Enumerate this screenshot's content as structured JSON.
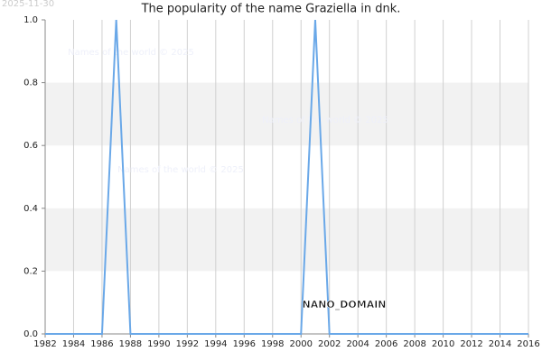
{
  "chart_data": {
    "type": "line",
    "title": "The popularity of the name Graziella in dnk.",
    "date_stamp": "2025-11-30",
    "watermarks": [
      "Names of the world © 2025",
      "Names of the world © 2025",
      "Names of the world © 2025"
    ],
    "domain_label": "NANO_DOMAIN",
    "x": [
      1982,
      1983,
      1984,
      1985,
      1986,
      1987,
      1988,
      1989,
      1990,
      1991,
      1992,
      1993,
      1994,
      1995,
      1996,
      1997,
      1998,
      1999,
      2000,
      2001,
      2002,
      2003,
      2004,
      2005,
      2006,
      2007,
      2008,
      2009,
      2010,
      2011,
      2012,
      2013,
      2014,
      2015,
      2016
    ],
    "series": [
      {
        "name": "Graziella",
        "color": "#6aa8e8",
        "values": [
          0,
          0,
          0,
          0,
          0,
          1,
          0,
          0,
          0,
          0,
          0,
          0,
          0,
          0,
          0,
          0,
          0,
          0,
          0,
          1,
          0,
          0,
          0,
          0,
          0,
          0,
          0,
          0,
          0,
          0,
          0,
          0,
          0,
          0,
          0
        ]
      }
    ],
    "xlim": [
      1982,
      2016
    ],
    "xticks": [
      1982,
      1984,
      1986,
      1988,
      1990,
      1992,
      1994,
      1996,
      1998,
      2000,
      2002,
      2004,
      2006,
      2008,
      2010,
      2012,
      2014,
      2016
    ],
    "ylim": [
      0,
      1
    ],
    "yticks": [
      {
        "value": 0,
        "label": "0.0"
      },
      {
        "value": 0.2,
        "label": "0.2"
      },
      {
        "value": 0.4,
        "label": "0.4"
      },
      {
        "value": 0.6,
        "label": "0.6"
      },
      {
        "value": 0.8,
        "label": "0.8"
      },
      {
        "value": 1,
        "label": "1.0"
      }
    ],
    "grid": true
  }
}
